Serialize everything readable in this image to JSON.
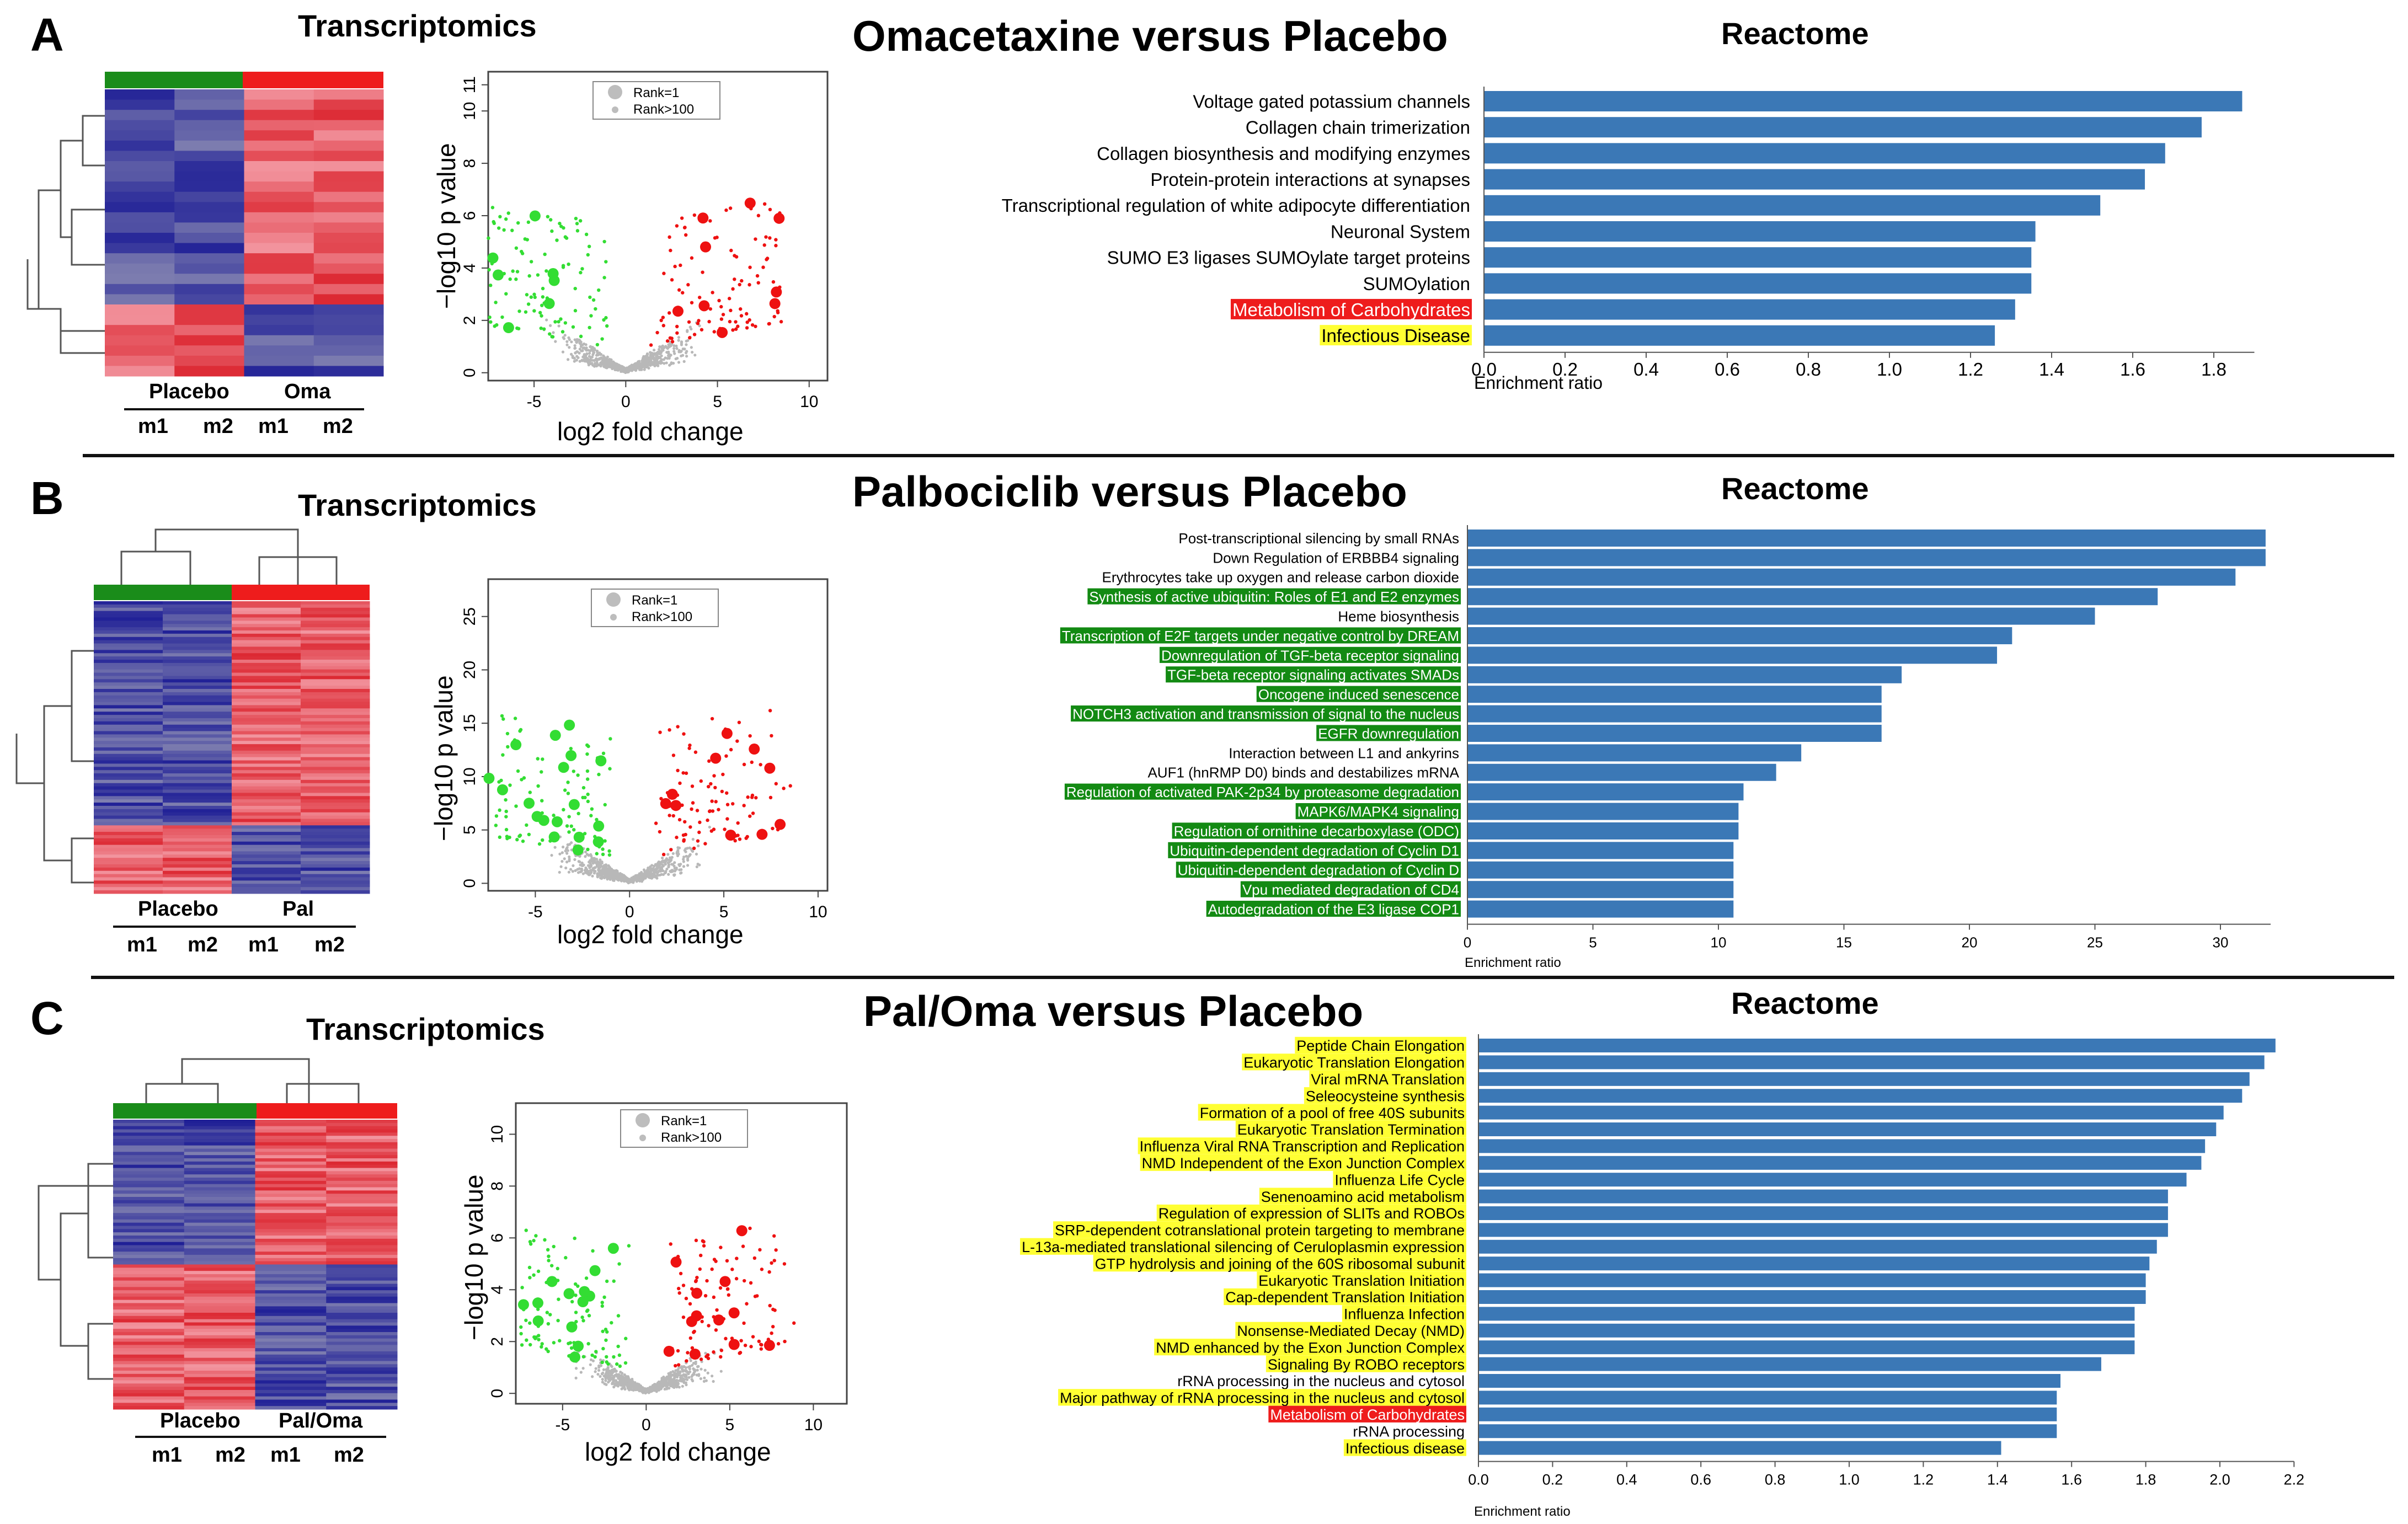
{
  "figure": {
    "panels": [
      {
        "letter": "A",
        "transcriptomics_title": "Transcriptomics",
        "comparison_title": "Omacetaxine  versus  Placebo",
        "heatmap": {
          "groups": [
            "Placebo",
            "Oma"
          ],
          "samples": [
            "m1",
            "m2",
            "m1",
            "m2"
          ],
          "bar_colors": [
            "#1a8c1a",
            "#ee1c1c"
          ]
        },
        "volcano": {
          "xlabel": "log2 fold change",
          "ylabel": "−log10 p value",
          "xticks": [
            "-5",
            "0",
            "5",
            "10"
          ],
          "yticks": [
            "0",
            "2",
            "4",
            "6",
            "8",
            "10",
            "11"
          ],
          "legend": [
            "Rank=1",
            "Rank>100"
          ]
        },
        "reactome": {
          "title": "Reactome",
          "xlabel": "Enrichment ratio",
          "xticks": [
            "0.0",
            "0.2",
            "0.4",
            "0.6",
            "0.8",
            "1.0",
            "1.2",
            "1.4",
            "1.6",
            "1.8"
          ]
        }
      },
      {
        "letter": "B",
        "transcriptomics_title": "Transcriptomics",
        "comparison_title": "Palbociclib  versus  Placebo",
        "heatmap": {
          "groups": [
            "Placebo",
            "Pal"
          ],
          "samples": [
            "m1",
            "m2",
            "m1",
            "m2"
          ],
          "bar_colors": [
            "#1a8c1a",
            "#ee1c1c"
          ]
        },
        "volcano": {
          "xlabel": "log2 fold change",
          "ylabel": "−log10 p value",
          "xticks": [
            "-5",
            "0",
            "5",
            "10"
          ],
          "yticks": [
            "0",
            "5",
            "10",
            "15",
            "20",
            "25"
          ],
          "legend": [
            "Rank=1",
            "Rank>100"
          ]
        },
        "reactome": {
          "title": "Reactome",
          "xlabel": "Enrichment ratio",
          "xticks": [
            "0",
            "5",
            "10",
            "15",
            "20",
            "25",
            "30"
          ]
        }
      },
      {
        "letter": "C",
        "transcriptomics_title": "Transcriptomics",
        "comparison_title": "Pal/Oma  versus  Placebo",
        "heatmap": {
          "groups": [
            "Placebo",
            "Pal/Oma"
          ],
          "samples": [
            "m1",
            "m2",
            "m1",
            "m2"
          ],
          "bar_colors": [
            "#1a8c1a",
            "#ee1c1c"
          ]
        },
        "volcano": {
          "xlabel": "log2 fold change",
          "ylabel": "−log10 p value",
          "xticks": [
            "-5",
            "0",
            "5",
            "10"
          ],
          "yticks": [
            "0",
            "2",
            "4",
            "6",
            "8",
            "10"
          ],
          "legend": [
            "Rank=1",
            "Rank>100"
          ]
        },
        "reactome": {
          "title": "Reactome",
          "xlabel": "Enrichment ratio",
          "xticks": [
            "0.0",
            "0.2",
            "0.4",
            "0.6",
            "0.8",
            "1.0",
            "1.2",
            "1.4",
            "1.6",
            "1.8",
            "2.0",
            "2.2"
          ]
        }
      }
    ]
  },
  "chart_data": [
    {
      "type": "bar",
      "orientation": "horizontal",
      "title": "Reactome",
      "xlabel": "Enrichment ratio",
      "xlim": [
        0,
        1.9
      ],
      "bar_color": "#3b78b6",
      "categories": [
        "Voltage gated potassium channels",
        "Collagen chain trimerization",
        "Collagen biosynthesis and modifying enzymes",
        "Protein-protein interactions at synapses",
        "Transcriptional regulation of white adipocyte differentiation",
        "Neuronal System",
        "SUMO E3 ligases SUMOylate target proteins",
        "SUMOylation",
        "Metabolism of Carbohydrates",
        "Infectious Disease"
      ],
      "values": [
        1.87,
        1.77,
        1.68,
        1.63,
        1.52,
        1.36,
        1.35,
        1.35,
        1.31,
        1.26
      ],
      "highlights": [
        "",
        "",
        "",
        "",
        "",
        "",
        "",
        "",
        "#ee1c1c",
        "#ffff33"
      ]
    },
    {
      "type": "bar",
      "orientation": "horizontal",
      "title": "Reactome",
      "xlabel": "Enrichment ratio",
      "xlim": [
        0,
        32
      ],
      "bar_color": "#3b78b6",
      "categories": [
        "Post-transcriptional silencing by small RNAs",
        "Down Regulation of ERBBB4 signaling",
        "Erythrocytes take up oxygen and release carbon dioxide",
        "Synthesis of active ubiquitin: Roles of E1 and E2 enzymes",
        "Heme biosynthesis",
        "Transcription of E2F targets under negative control by DREAM",
        "Downregulation of TGF-beta receptor signaling",
        "TGF-beta receptor signaling activates SMADs",
        "Oncogene induced senescence",
        "NOTCH3 activation and transmission of signal to the nucleus",
        "EGFR downregulation",
        "Interaction between L1 and ankyrins",
        "AUF1 (hnRMP D0) binds and destabilizes mRNA",
        "Regulation of activated PAK-2p34 by proteasome degradation",
        "MAPK6/MAPK4  signaling",
        "Regulation of ornithine decarboxylase (ODC)",
        "Ubiquitin-dependent degradation of Cyclin D1",
        "Ubiquitin-dependent degradation of Cyclin D",
        "Vpu mediated degradation of CD4",
        "Autodegradation of the E3 ligase COP1"
      ],
      "values": [
        31.8,
        31.8,
        30.6,
        27.5,
        25.0,
        21.7,
        21.1,
        17.3,
        16.5,
        16.5,
        16.5,
        13.3,
        12.3,
        11.0,
        10.8,
        10.8,
        10.6,
        10.6,
        10.6,
        10.6
      ],
      "highlights": [
        "",
        "",
        "",
        "#138a13",
        "",
        "#138a13",
        "#138a13",
        "#138a13",
        "#138a13",
        "#138a13",
        "#138a13",
        "",
        "",
        "#138a13",
        "#138a13",
        "#138a13",
        "#138a13",
        "#138a13",
        "#138a13",
        "#138a13"
      ]
    },
    {
      "type": "bar",
      "orientation": "horizontal",
      "title": "Reactome",
      "xlabel": "Enrichment ratio",
      "xlim": [
        0,
        2.2
      ],
      "bar_color": "#3b78b6",
      "categories": [
        "Peptide Chain Elongation",
        "Eukaryotic Translation Elongation",
        "Viral mRNA Translation",
        "Seleocysteine synthesis",
        "Formation of a pool of free 40S subunits",
        "Eukaryotic Translation Termination",
        "Influenza Viral RNA Transcription and Replication",
        "NMD Independent of the Exon Junction Complex",
        "Influenza Life Cycle",
        "Senenoamino acid metabolism",
        "Regulation of expression of SLITs and ROBOs",
        "SRP-dependent cotranslational protein targeting to membrane",
        "L-13a-mediated translational silencing of Ceruloplasmin expression",
        "GTP hydrolysis and joining of the 60S ribosomal subunit",
        "Eukaryotic Translation Initiation",
        "Cap-dependent Translation Initiation",
        "Influenza Infection",
        "Nonsense-Mediated Decay (NMD)",
        "NMD enhanced by the Exon Junction Complex",
        "Signaling By ROBO receptors",
        "rRNA processing in the nucleus and cytosol",
        "Major pathway of rRNA processing in the nucleus and cytosol",
        "Metabolism of Carbohydrates",
        "rRNA processing",
        "Infectious disease"
      ],
      "values": [
        2.15,
        2.12,
        2.08,
        2.06,
        2.01,
        1.99,
        1.96,
        1.95,
        1.91,
        1.86,
        1.86,
        1.86,
        1.83,
        1.81,
        1.8,
        1.8,
        1.77,
        1.77,
        1.77,
        1.68,
        1.57,
        1.56,
        1.56,
        1.56,
        1.41
      ],
      "highlights": [
        "#ffff33",
        "#ffff33",
        "#ffff33",
        "#ffff33",
        "#ffff33",
        "#ffff33",
        "#ffff33",
        "#ffff33",
        "#ffff33",
        "#ffff33",
        "#ffff33",
        "#ffff33",
        "#ffff33",
        "#ffff33",
        "#ffff33",
        "#ffff33",
        "#ffff33",
        "#ffff33",
        "#ffff33",
        "#ffff33",
        "",
        "#ffff33",
        "#ee1c1c",
        "",
        "#ffff33"
      ]
    }
  ]
}
